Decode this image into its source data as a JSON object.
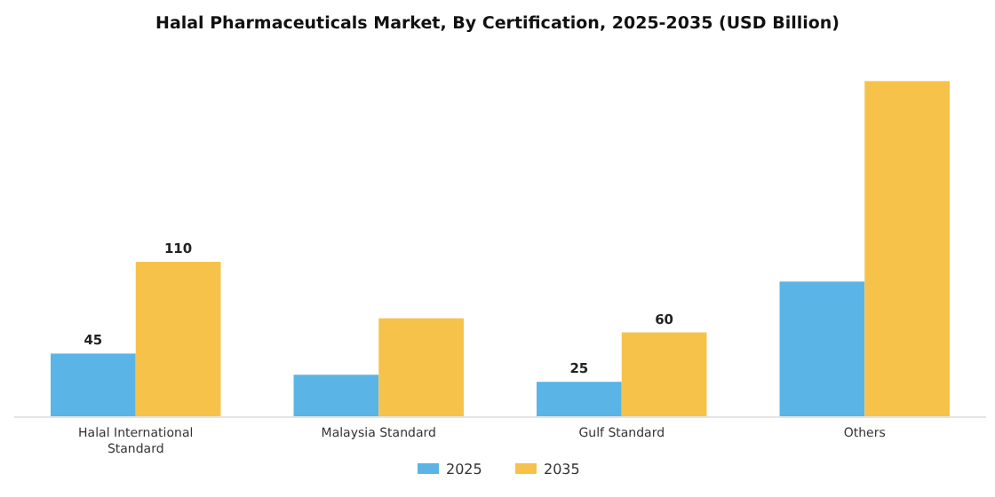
{
  "chart_data": {
    "type": "bar",
    "title": "Halal Pharmaceuticals Market, By Certification, 2025-2035 (USD Billion)",
    "categories": [
      "Halal International Standard",
      "Malaysia Standard",
      "Gulf Standard",
      "Others"
    ],
    "series": [
      {
        "name": "2025",
        "color": "#5ab4e5",
        "values": [
          45,
          30,
          25,
          96
        ],
        "value_labels": [
          "45",
          null,
          "25",
          null
        ]
      },
      {
        "name": "2035",
        "color": "#f7c24a",
        "values": [
          110,
          70,
          60,
          238
        ],
        "value_labels": [
          "110",
          null,
          "60",
          null
        ]
      }
    ],
    "legend": "bottom",
    "grid": false
  }
}
